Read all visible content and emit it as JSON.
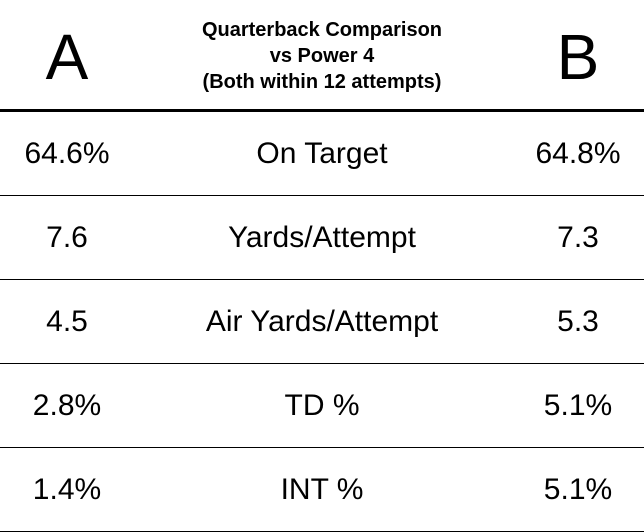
{
  "header": {
    "player_a": "A",
    "player_b": "B",
    "title_lines": [
      "Quarterback Comparison",
      "vs Power 4",
      "(Both within 12 attempts)"
    ]
  },
  "rows": [
    {
      "metric": "On Target",
      "a": "64.6%",
      "b": "64.8%"
    },
    {
      "metric": "Yards/Attempt",
      "a": "7.6",
      "b": "7.3"
    },
    {
      "metric": "Air Yards/Attempt",
      "a": "4.5",
      "b": "5.3"
    },
    {
      "metric": "TD %",
      "a": "2.8%",
      "b": "5.1%"
    },
    {
      "metric": "INT %",
      "a": "1.4%",
      "b": "5.1%"
    }
  ]
}
